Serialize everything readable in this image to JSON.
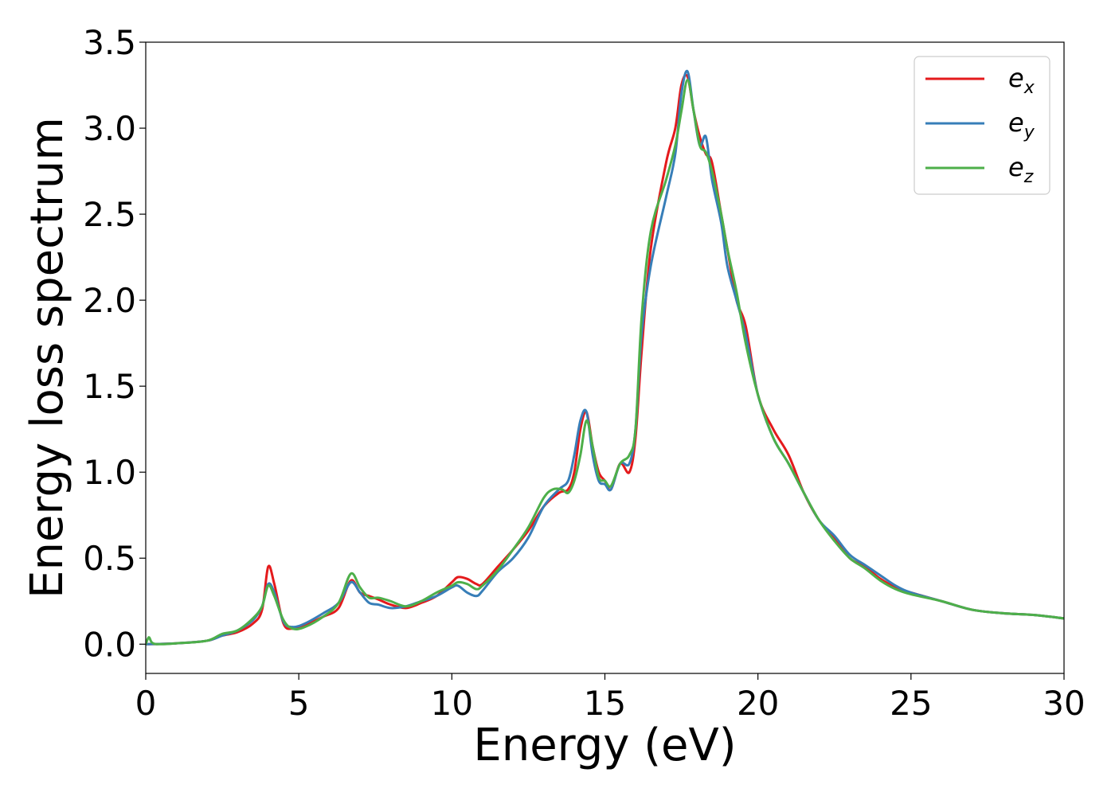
{
  "chart_data": {
    "type": "line",
    "xlabel": "Energy (eV)",
    "ylabel": "Energy loss spectrum",
    "xlim": [
      0,
      30
    ],
    "ylim": [
      -0.17,
      3.5
    ],
    "xticks": [
      0,
      5,
      10,
      15,
      20,
      25,
      30
    ],
    "yticks": [
      0.0,
      0.5,
      1.0,
      1.5,
      2.0,
      2.5,
      3.0,
      3.5
    ],
    "xtick_labels": [
      "0",
      "5",
      "10",
      "15",
      "20",
      "25",
      "30"
    ],
    "ytick_labels": [
      "0.0",
      "0.5",
      "1.0",
      "1.5",
      "2.0",
      "2.5",
      "3.0",
      "3.5"
    ],
    "grid": false,
    "legend_position": "top-right",
    "series": [
      {
        "name": "e_x",
        "legend_base": "e",
        "legend_sub": "x",
        "color": "#e41a1c",
        "x": [
          0,
          1,
          2,
          2.5,
          3,
          3.5,
          3.8,
          4.0,
          4.2,
          4.5,
          4.8,
          5.2,
          5.8,
          6.3,
          6.7,
          7.0,
          7.3,
          7.6,
          8,
          8.5,
          9,
          9.5,
          10,
          10.2,
          10.5,
          10.8,
          11,
          11.5,
          12,
          12.5,
          13,
          13.5,
          13.8,
          14,
          14.2,
          14.4,
          14.6,
          14.8,
          15,
          15.2,
          15.5,
          15.8,
          16,
          16.2,
          16.5,
          17,
          17.3,
          17.5,
          17.7,
          17.9,
          18.1,
          18.3,
          18.5,
          18.8,
          19,
          19.3,
          19.6,
          20,
          20.5,
          21,
          21.5,
          22,
          22.5,
          23,
          23.5,
          24,
          24.5,
          25,
          26,
          27,
          28,
          29,
          30
        ],
        "y": [
          0,
          0.005,
          0.02,
          0.05,
          0.07,
          0.12,
          0.2,
          0.45,
          0.35,
          0.12,
          0.09,
          0.11,
          0.16,
          0.21,
          0.37,
          0.3,
          0.28,
          0.26,
          0.23,
          0.21,
          0.24,
          0.28,
          0.36,
          0.39,
          0.38,
          0.35,
          0.35,
          0.45,
          0.55,
          0.66,
          0.8,
          0.88,
          0.9,
          1.0,
          1.25,
          1.35,
          1.15,
          1.0,
          0.95,
          0.9,
          1.05,
          1.0,
          1.2,
          1.7,
          2.3,
          2.8,
          3.0,
          3.25,
          3.3,
          3.1,
          2.95,
          2.85,
          2.8,
          2.5,
          2.3,
          2.0,
          1.85,
          1.45,
          1.25,
          1.1,
          0.88,
          0.72,
          0.62,
          0.5,
          0.45,
          0.38,
          0.33,
          0.3,
          0.25,
          0.2,
          0.18,
          0.17,
          0.15
        ]
      },
      {
        "name": "e_y",
        "legend_base": "e",
        "legend_sub": "y",
        "color": "#377eb8",
        "x": [
          0,
          1,
          2,
          2.5,
          3,
          3.5,
          3.8,
          4.0,
          4.2,
          4.5,
          4.8,
          5.2,
          5.8,
          6.3,
          6.7,
          7.0,
          7.3,
          7.6,
          8,
          8.5,
          9,
          9.5,
          10,
          10.2,
          10.5,
          10.8,
          11,
          11.5,
          12,
          12.5,
          13,
          13.5,
          13.8,
          14,
          14.2,
          14.4,
          14.6,
          14.8,
          15,
          15.2,
          15.5,
          15.8,
          16,
          16.2,
          16.5,
          17,
          17.3,
          17.5,
          17.7,
          17.9,
          18.1,
          18.3,
          18.5,
          18.8,
          19,
          19.3,
          19.6,
          20,
          20.5,
          21,
          21.5,
          22,
          22.5,
          23,
          23.5,
          24,
          24.5,
          25,
          26,
          27,
          28,
          29,
          30
        ],
        "y": [
          0,
          0.005,
          0.02,
          0.05,
          0.08,
          0.14,
          0.22,
          0.35,
          0.3,
          0.13,
          0.1,
          0.12,
          0.18,
          0.24,
          0.36,
          0.3,
          0.24,
          0.23,
          0.21,
          0.22,
          0.25,
          0.28,
          0.33,
          0.34,
          0.3,
          0.28,
          0.31,
          0.42,
          0.5,
          0.62,
          0.8,
          0.9,
          0.95,
          1.1,
          1.3,
          1.35,
          1.1,
          0.95,
          0.93,
          0.9,
          1.05,
          1.05,
          1.25,
          1.8,
          2.2,
          2.6,
          2.85,
          3.2,
          3.33,
          3.1,
          2.9,
          2.95,
          2.7,
          2.45,
          2.2,
          2.0,
          1.8,
          1.45,
          1.2,
          1.05,
          0.88,
          0.72,
          0.63,
          0.52,
          0.46,
          0.4,
          0.34,
          0.3,
          0.25,
          0.2,
          0.18,
          0.17,
          0.15
        ]
      },
      {
        "name": "e_z",
        "legend_base": "e",
        "legend_sub": "z",
        "color": "#4daf4a",
        "x": [
          0,
          0.1,
          0.2,
          0.4,
          1,
          2,
          2.5,
          3,
          3.5,
          3.8,
          4.0,
          4.2,
          4.5,
          4.8,
          5.2,
          5.8,
          6.3,
          6.7,
          7.0,
          7.3,
          7.6,
          8,
          8.5,
          9,
          9.5,
          10,
          10.2,
          10.5,
          10.8,
          11,
          11.5,
          12,
          12.5,
          13,
          13.3,
          13.6,
          13.8,
          14,
          14.2,
          14.4,
          14.6,
          14.8,
          15,
          15.2,
          15.5,
          15.8,
          16,
          16.2,
          16.5,
          17,
          17.3,
          17.5,
          17.7,
          17.9,
          18.1,
          18.3,
          18.5,
          18.8,
          19,
          19.3,
          19.6,
          20,
          20.5,
          21,
          21.5,
          22,
          22.5,
          23,
          23.5,
          24,
          24.5,
          25,
          26,
          27,
          28,
          29,
          30
        ],
        "y": [
          0,
          0.04,
          0.01,
          0,
          0.005,
          0.02,
          0.06,
          0.08,
          0.15,
          0.22,
          0.34,
          0.28,
          0.14,
          0.09,
          0.1,
          0.16,
          0.24,
          0.41,
          0.33,
          0.27,
          0.27,
          0.25,
          0.22,
          0.25,
          0.3,
          0.34,
          0.36,
          0.35,
          0.32,
          0.34,
          0.43,
          0.55,
          0.68,
          0.85,
          0.9,
          0.9,
          0.88,
          0.95,
          1.1,
          1.3,
          1.15,
          0.97,
          0.95,
          0.92,
          1.05,
          1.1,
          1.25,
          1.9,
          2.4,
          2.7,
          2.9,
          3.1,
          3.28,
          3.1,
          2.9,
          2.86,
          2.75,
          2.5,
          2.3,
          2.05,
          1.75,
          1.45,
          1.2,
          1.05,
          0.88,
          0.72,
          0.6,
          0.5,
          0.44,
          0.37,
          0.32,
          0.29,
          0.25,
          0.2,
          0.18,
          0.17,
          0.15
        ]
      }
    ]
  }
}
